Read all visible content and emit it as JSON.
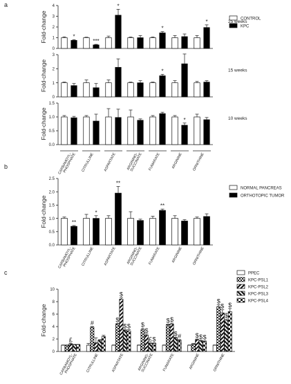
{
  "colors": {
    "control": "#ffffff",
    "treated": "#000000",
    "axis": "#222222",
    "error": "#333333"
  },
  "chart_data": [
    {
      "panel": "a",
      "type": "bar",
      "ylabel": "Fold-change",
      "right_label": "25 weeks",
      "ylim": [
        0,
        4
      ],
      "yticks": [
        0,
        1,
        2,
        3,
        4
      ],
      "legend": [
        "CONTROL",
        "KPC"
      ],
      "categories": [
        "CARBAMOYL-PHOSPHATE",
        "CITRULLINE",
        "ASPARTATE",
        "ARGININO-SUCCINATE",
        "FUMARATE",
        "ARGININE",
        "ORNITHINE"
      ],
      "series": [
        {
          "name": "CONTROL",
          "values": [
            1,
            1,
            1,
            1,
            1,
            1,
            1
          ],
          "err": [
            0.08,
            0.05,
            0.15,
            0.07,
            0.07,
            0.2,
            0.2
          ]
        },
        {
          "name": "KPC",
          "values": [
            0.75,
            0.33,
            3.1,
            1.0,
            1.45,
            1.1,
            1.95
          ],
          "err": [
            0.07,
            0.05,
            0.55,
            0.2,
            0.12,
            0.25,
            0.25
          ]
        }
      ],
      "annotations": [
        "*",
        "***",
        "*",
        "",
        "*",
        "",
        "*"
      ]
    },
    {
      "panel": "a",
      "type": "bar",
      "ylabel": "Fold-change",
      "right_label": "15 weeks",
      "ylim": [
        0,
        3
      ],
      "yticks": [
        0,
        1,
        2,
        3
      ],
      "categories": [
        "CARBAMOYL-PHOSPHATE",
        "CITRULLINE",
        "ASPARTATE",
        "ARGININO-SUCCINATE",
        "FUMARATE",
        "ARGININE",
        "ORNITHINE"
      ],
      "series": [
        {
          "name": "CONTROL",
          "values": [
            1,
            1,
            1,
            1,
            1,
            1,
            1
          ],
          "err": [
            0.05,
            0.2,
            0.2,
            0.05,
            0.05,
            0.15,
            0.1
          ]
        },
        {
          "name": "KPC",
          "values": [
            0.8,
            0.65,
            2.1,
            1.0,
            1.5,
            2.35,
            1.05
          ],
          "err": [
            0.15,
            0.3,
            0.6,
            0.15,
            0.1,
            0.7,
            0.1
          ]
        }
      ],
      "annotations": [
        "",
        "",
        "",
        "",
        "*",
        "",
        ""
      ]
    },
    {
      "panel": "a",
      "type": "bar",
      "ylabel": "Fold-change",
      "right_label": "10 weeks",
      "ylim": [
        0,
        1.5
      ],
      "yticks": [
        0.0,
        0.5,
        1.0,
        1.5
      ],
      "categories": [
        "CARBAMOYL-PHOSPHATE",
        "CITRULLINE",
        "ASPARTATE",
        "ARGININO-SUCCINATE",
        "FUMARATE",
        "ARGININE",
        "ORNITHINE"
      ],
      "series": [
        {
          "name": "CONTROL",
          "values": [
            1,
            1,
            1,
            1,
            1,
            1,
            1
          ],
          "err": [
            0.05,
            0.05,
            0.3,
            0.25,
            0.05,
            0.05,
            0.1
          ]
        },
        {
          "name": "KPC",
          "values": [
            0.97,
            0.85,
            0.98,
            0.88,
            1.12,
            0.7,
            0.9
          ],
          "err": [
            0.05,
            0.25,
            0.3,
            0.05,
            0.05,
            0.08,
            0.08
          ]
        }
      ],
      "annotations": [
        "",
        "",
        "",
        "",
        "",
        "*",
        ""
      ]
    },
    {
      "panel": "b",
      "type": "bar",
      "ylabel": "Fold-change",
      "right_label": "",
      "ylim": [
        0,
        2.5
      ],
      "yticks": [
        0.0,
        0.5,
        1.0,
        1.5,
        2.0,
        2.5
      ],
      "legend": [
        "NORMAL PANCREAS",
        "ORTHOTOPIC TUMOR"
      ],
      "categories": [
        "CARBAMOYL-PHOSPHATE",
        "CITRULLINE",
        "ASPARTATE",
        "ARGININO-SUCCINATE",
        "FUMARATE",
        "ARGININE",
        "ORNITHINE"
      ],
      "series": [
        {
          "name": "NORMAL PANCREAS",
          "values": [
            1,
            1,
            1,
            1,
            1,
            1,
            1
          ],
          "err": [
            0.05,
            0.15,
            0.1,
            0.25,
            0.08,
            0.1,
            0.05
          ]
        },
        {
          "name": "ORTHOTOPIC TUMOR",
          "values": [
            0.7,
            1.0,
            1.95,
            0.92,
            1.3,
            0.9,
            1.07
          ],
          "err": [
            0.03,
            0.1,
            0.25,
            0.05,
            0.05,
            0.05,
            0.1
          ]
        }
      ],
      "annotations": [
        "**",
        "*",
        "**",
        "",
        "**",
        "",
        ""
      ]
    },
    {
      "panel": "c",
      "type": "bar",
      "ylabel": "Fold-change",
      "right_label": "",
      "ylim": [
        0,
        10
      ],
      "yticks": [
        0,
        2,
        4,
        6,
        8,
        10
      ],
      "legend": [
        "PPEC",
        "KPC-PSL1",
        "KPC-PSL2",
        "KPC-PSL3",
        "KPC-PSL4"
      ],
      "categories": [
        "CARBAMOYL-PHOSPHATE",
        "CITRULLINE",
        "ASPARTATE",
        "ARGININO-SUCCINATE",
        "FUMARATE",
        "ARGININE",
        "ORNITHINE"
      ],
      "series": [
        {
          "name": "PPEC",
          "values": [
            1,
            1,
            1,
            1,
            1,
            1,
            1
          ],
          "err": [
            0.05,
            0.3,
            0.05,
            0.05,
            0.05,
            0.05,
            0.05
          ]
        },
        {
          "name": "KPC-PSL1",
          "values": [
            1.0,
            3.9,
            4.4,
            3.5,
            4.3,
            1.2,
            7.2
          ],
          "err": [
            0.05,
            0.1,
            0.1,
            0.2,
            0.1,
            0.1,
            0.3
          ]
        },
        {
          "name": "KPC-PSL2",
          "values": [
            1.2,
            1.4,
            8.4,
            2.6,
            4.4,
            1.9,
            6.2
          ],
          "err": [
            0.1,
            0.8,
            0.2,
            0.2,
            0.15,
            0.1,
            0.5
          ]
        },
        {
          "name": "KPC-PSL3",
          "values": [
            1.1,
            1.8,
            3.4,
            1.3,
            2.2,
            1.7,
            5.0
          ],
          "err": [
            0.05,
            0.1,
            0.1,
            0.1,
            0.1,
            0.1,
            0.2
          ]
        },
        {
          "name": "KPC-PSL4",
          "values": [
            1.1,
            2.4,
            3.3,
            1.3,
            1.8,
            1.6,
            6.4
          ],
          "err": [
            0.05,
            0.2,
            0.2,
            0.1,
            0.1,
            0.1,
            0.5
          ]
        }
      ],
      "annotations": [
        [
          "",
          "",
          "£",
          "",
          ""
        ],
        [
          "",
          "#",
          "",
          "",
          ""
        ],
        [
          "",
          "$",
          "$",
          "$",
          "$"
        ],
        [
          "",
          "$",
          "$",
          "£",
          "$"
        ],
        [
          "",
          "$",
          "$",
          "$",
          "#"
        ],
        [
          "",
          "",
          "$",
          "$",
          "$"
        ],
        [
          "",
          "$",
          "$",
          "$",
          "$"
        ]
      ]
    }
  ],
  "panel_labels": [
    "a",
    "b",
    "c"
  ],
  "category_labels": [
    [
      "CARBAMOYL-",
      "PHOSPHATE"
    ],
    [
      "CITRULLINE"
    ],
    [
      "ASPARTATE"
    ],
    [
      "ARGININO-",
      "SUCCINATE"
    ],
    [
      "FUMARATE"
    ],
    [
      "ARGININE"
    ],
    [
      "ORNITHINE"
    ]
  ]
}
